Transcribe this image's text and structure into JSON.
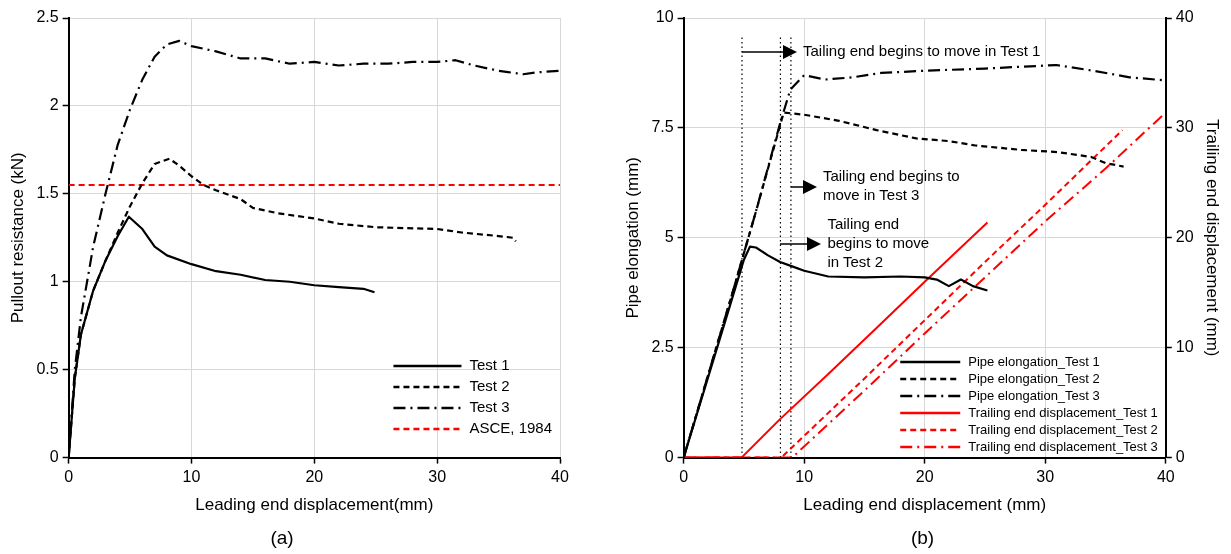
{
  "chart_data": [
    {
      "type": "line",
      "title": "(a)",
      "xlabel": "Leading end displacement(mm)",
      "ylabel": "Pullout resistance (kN)",
      "xlim": [
        0,
        40
      ],
      "xticks": [
        0,
        10,
        20,
        30,
        40
      ],
      "ylim": [
        0,
        2.5
      ],
      "yticks": [
        0,
        0.5,
        1,
        1.5,
        2,
        2.5
      ],
      "grid": true,
      "legend": "bottom right",
      "marker": "none",
      "series": [
        {
          "name": "Test 1",
          "color": "#000000",
          "line_style": "solid",
          "x": [
            0,
            0.5,
            1,
            2,
            3,
            4,
            4.9,
            6,
            7,
            8,
            10,
            12,
            14,
            16,
            18,
            20,
            22,
            24,
            24.9
          ],
          "values": [
            0,
            0.45,
            0.7,
            0.95,
            1.12,
            1.26,
            1.37,
            1.3,
            1.2,
            1.15,
            1.1,
            1.06,
            1.04,
            1.01,
            1,
            0.98,
            0.97,
            0.96,
            0.94
          ]
        },
        {
          "name": "Test 2",
          "color": "#000000",
          "line_style": "dashed",
          "x": [
            0,
            0.5,
            1,
            2,
            3,
            4,
            5,
            6,
            7,
            8.2,
            9,
            10,
            11,
            12,
            14,
            15,
            17,
            20,
            22,
            25,
            30,
            32,
            35,
            36.2,
            36.4
          ],
          "values": [
            0,
            0.45,
            0.7,
            0.95,
            1.12,
            1.28,
            1.43,
            1.56,
            1.67,
            1.7,
            1.66,
            1.6,
            1.55,
            1.52,
            1.47,
            1.42,
            1.39,
            1.36,
            1.33,
            1.31,
            1.3,
            1.28,
            1.26,
            1.25,
            1.23
          ]
        },
        {
          "name": "Test 3",
          "color": "#000000",
          "line_style": "dashdot",
          "x": [
            0,
            0.5,
            1,
            2,
            3,
            4,
            5,
            6,
            7,
            8,
            9,
            10,
            12,
            14,
            16,
            18,
            20,
            22,
            24,
            26,
            28,
            30,
            31.5,
            33,
            35,
            37,
            38,
            40
          ],
          "values": [
            0,
            0.5,
            0.8,
            1.2,
            1.5,
            1.78,
            1.98,
            2.15,
            2.28,
            2.35,
            2.37,
            2.34,
            2.31,
            2.27,
            2.27,
            2.24,
            2.25,
            2.23,
            2.24,
            2.24,
            2.25,
            2.25,
            2.26,
            2.23,
            2.2,
            2.18,
            2.19,
            2.2
          ]
        },
        {
          "name": "ASCE, 1984",
          "color": "#ff0000",
          "line_style": "dashed",
          "x": [
            0,
            40
          ],
          "values": [
            1.55,
            1.55
          ]
        }
      ]
    },
    {
      "type": "line",
      "title": "(b)",
      "xlabel": "Leading end displacement (mm)",
      "ylabel": "Pipe elongation (mm)",
      "y2label": "Trailing end displacement (mm)",
      "xlim": [
        0,
        40
      ],
      "xticks": [
        0,
        10,
        20,
        30,
        40
      ],
      "ylim": [
        0,
        10
      ],
      "yticks": [
        0,
        2.5,
        5,
        7.5,
        10
      ],
      "y2lim": [
        0,
        40
      ],
      "y2ticks": [
        0,
        10,
        20,
        30,
        40
      ],
      "grid": true,
      "legend": "bottom right",
      "marker": "none",
      "series": [
        {
          "name": "Pipe elongation_Test 1",
          "color": "#000000",
          "line_style": "solid",
          "x": [
            0,
            1,
            2,
            3,
            4,
            5,
            5.5,
            6,
            7,
            8,
            9,
            10,
            12,
            15,
            18,
            20,
            21,
            22,
            23,
            24,
            25.2
          ],
          "values": [
            0,
            0.9,
            1.8,
            2.7,
            3.6,
            4.5,
            4.8,
            4.78,
            4.6,
            4.45,
            4.35,
            4.25,
            4.12,
            4.1,
            4.12,
            4.1,
            4.05,
            3.9,
            4.05,
            3.9,
            3.8
          ]
        },
        {
          "name": "Pipe elongation_Test 2",
          "color": "#000000",
          "line_style": "dashed",
          "x": [
            0,
            2,
            4,
            6,
            8.3,
            10,
            12.9,
            16,
            19.3,
            22,
            24.2,
            28,
            31,
            33.8,
            35,
            36.5
          ],
          "values": [
            0,
            1.85,
            3.7,
            5.6,
            7.85,
            7.8,
            7.66,
            7.45,
            7.26,
            7.2,
            7.1,
            7,
            6.95,
            6.84,
            6.7,
            6.62
          ]
        },
        {
          "name": "Pipe elongation_Test 3",
          "color": "#000000",
          "line_style": "dashdot",
          "x": [
            0,
            2,
            4,
            6,
            8,
            8.85,
            10,
            11.7,
            14,
            16.4,
            20,
            25,
            30.9,
            34,
            37,
            40
          ],
          "values": [
            0,
            1.85,
            3.7,
            5.6,
            7.6,
            8.37,
            8.7,
            8.6,
            8.65,
            8.75,
            8.8,
            8.85,
            8.93,
            8.8,
            8.65,
            8.58
          ]
        },
        {
          "name": "Trailing end displacement_Test 1",
          "color": "#ff0000",
          "line_style": "solid",
          "axis": "y2",
          "x": [
            0,
            4.8,
            8,
            12,
            16,
            20,
            25.2
          ],
          "values": [
            0,
            0,
            3.5,
            7.6,
            11.8,
            16,
            21.4
          ]
        },
        {
          "name": "Trailing end displacement_Test 2",
          "color": "#ff0000",
          "line_style": "dashed",
          "axis": "y2",
          "x": [
            0,
            8.1,
            15,
            20,
            25,
            30,
            36.4
          ],
          "values": [
            0,
            0,
            7.2,
            12.5,
            17.8,
            23,
            29.8
          ]
        },
        {
          "name": "Trailing end displacement_Test 3",
          "color": "#ff0000",
          "line_style": "dashdot",
          "axis": "y2",
          "x": [
            0,
            9,
            15,
            20,
            25,
            30,
            35,
            39.7
          ],
          "values": [
            0,
            0,
            6.1,
            11.3,
            16.4,
            21.5,
            26.3,
            31.1
          ]
        }
      ],
      "ref_lines": [
        {
          "axis": "x",
          "value": 4.84,
          "color": "#000000",
          "line_style": "dotted",
          "label": "Tailing end begins to move in Test 1"
        },
        {
          "axis": "x",
          "value": 8.03,
          "color": "#000000",
          "line_style": "dotted",
          "label": "Tailing end\nbegins to move\nin Test 2"
        },
        {
          "axis": "x",
          "value": 8.9,
          "color": "#000000",
          "line_style": "dotted",
          "label": "Tailing end begins to\nmove in Test 3"
        }
      ]
    }
  ]
}
